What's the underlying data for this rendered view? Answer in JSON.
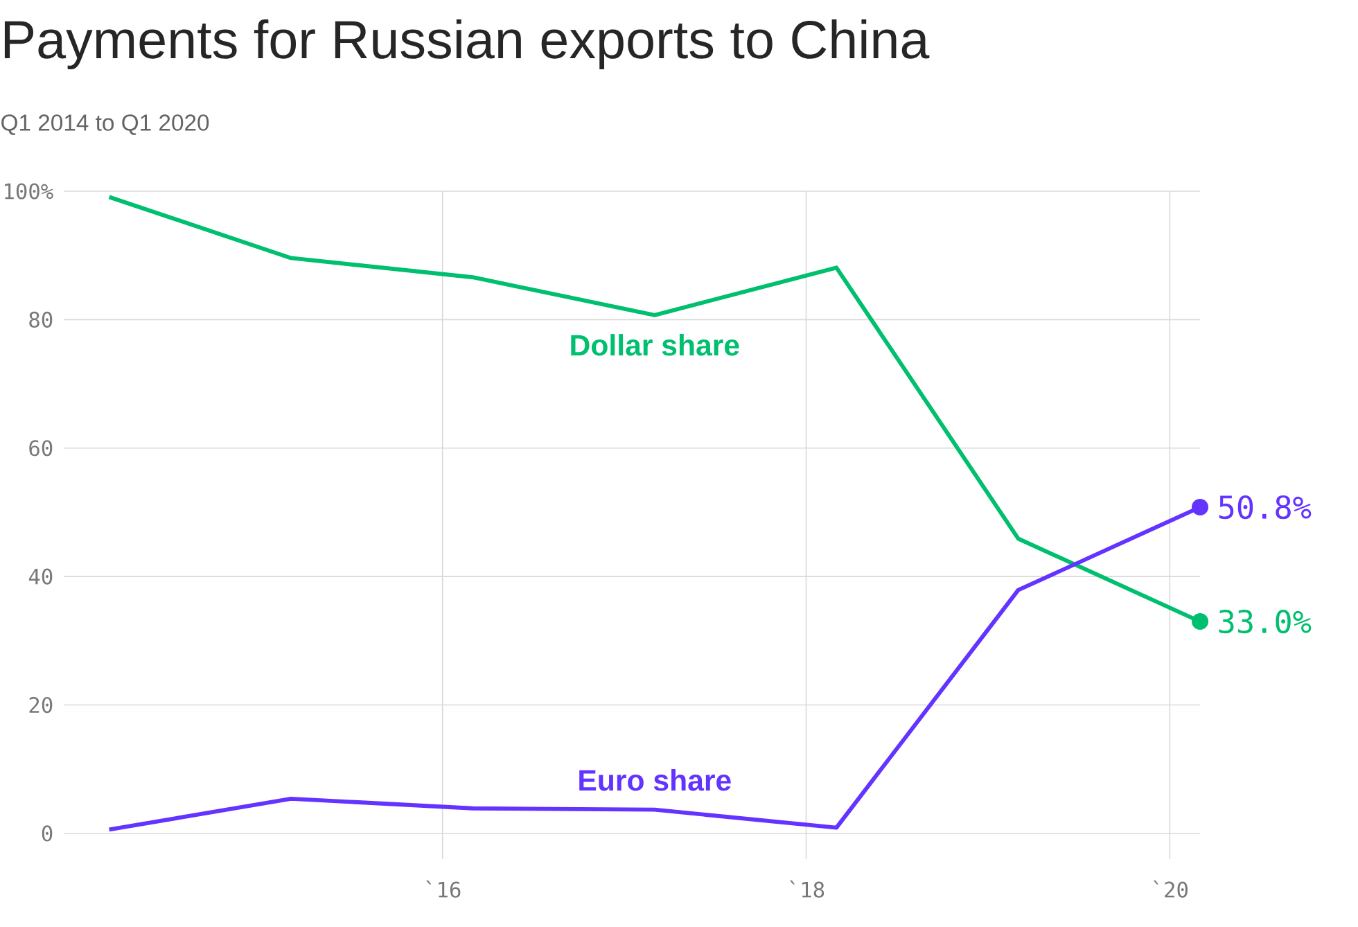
{
  "chart_data": {
    "type": "line",
    "title": "Payments for Russian exports to China",
    "subtitle": "Q1 2014 to Q1 2020",
    "x": [
      "2014-03",
      "2015-03",
      "2016-03",
      "2017-03",
      "2018-03",
      "2019-03",
      "2020-03"
    ],
    "series": [
      {
        "name": "Dollar share",
        "color": "#00bf6f",
        "values": [
          99.1,
          89.6,
          86.6,
          80.7,
          88.1,
          45.9,
          33.0
        ],
        "value_labels": [
          null,
          null,
          null,
          null,
          null,
          null,
          "33.0%"
        ]
      },
      {
        "name": "Euro share",
        "color": "#6333ff",
        "values": [
          0.6,
          5.4,
          3.9,
          3.7,
          0.9,
          37.9,
          50.8
        ],
        "value_labels": [
          null,
          null,
          null,
          null,
          null,
          null,
          "50.8%"
        ]
      }
    ],
    "xlim": [
      "2013-12",
      "2020-03"
    ],
    "xticks": [
      {
        "value": "2016-01",
        "label": "`16"
      },
      {
        "value": "2018-01",
        "label": "`18"
      },
      {
        "value": "2020-01",
        "label": "`20"
      }
    ],
    "ylim": [
      -4,
      100
    ],
    "yticks": [
      0,
      20,
      40,
      60,
      80,
      {
        "value": 100,
        "label": "100%"
      }
    ],
    "grid": true,
    "marker": "none",
    "line_style": "solid"
  }
}
